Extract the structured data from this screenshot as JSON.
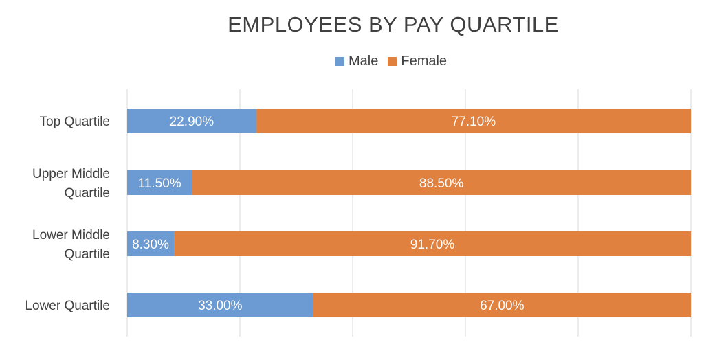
{
  "chart_data": {
    "type": "bar",
    "orientation": "horizontal",
    "stacked": true,
    "title": "EMPLOYEES BY PAY QUARTILE",
    "categories": [
      [
        "Top Quartile"
      ],
      [
        "Upper Middle",
        "Quartile"
      ],
      [
        "Lower Middle",
        "Quartile"
      ],
      [
        "Lower Quartile"
      ]
    ],
    "series": [
      {
        "name": "Male",
        "color": "#6b9bd2",
        "values": [
          22.9,
          11.5,
          8.3,
          33.0
        ],
        "labels": [
          "22.90%",
          "11.50%",
          "8.30%",
          "33.00%"
        ]
      },
      {
        "name": "Female",
        "color": "#e0813f",
        "values": [
          77.1,
          88.5,
          91.7,
          67.0
        ],
        "labels": [
          "77.10%",
          "88.50%",
          "91.70%",
          "67.00%"
        ]
      }
    ],
    "xlim": [
      0,
      100
    ],
    "grid": true,
    "legend_position": "top"
  }
}
